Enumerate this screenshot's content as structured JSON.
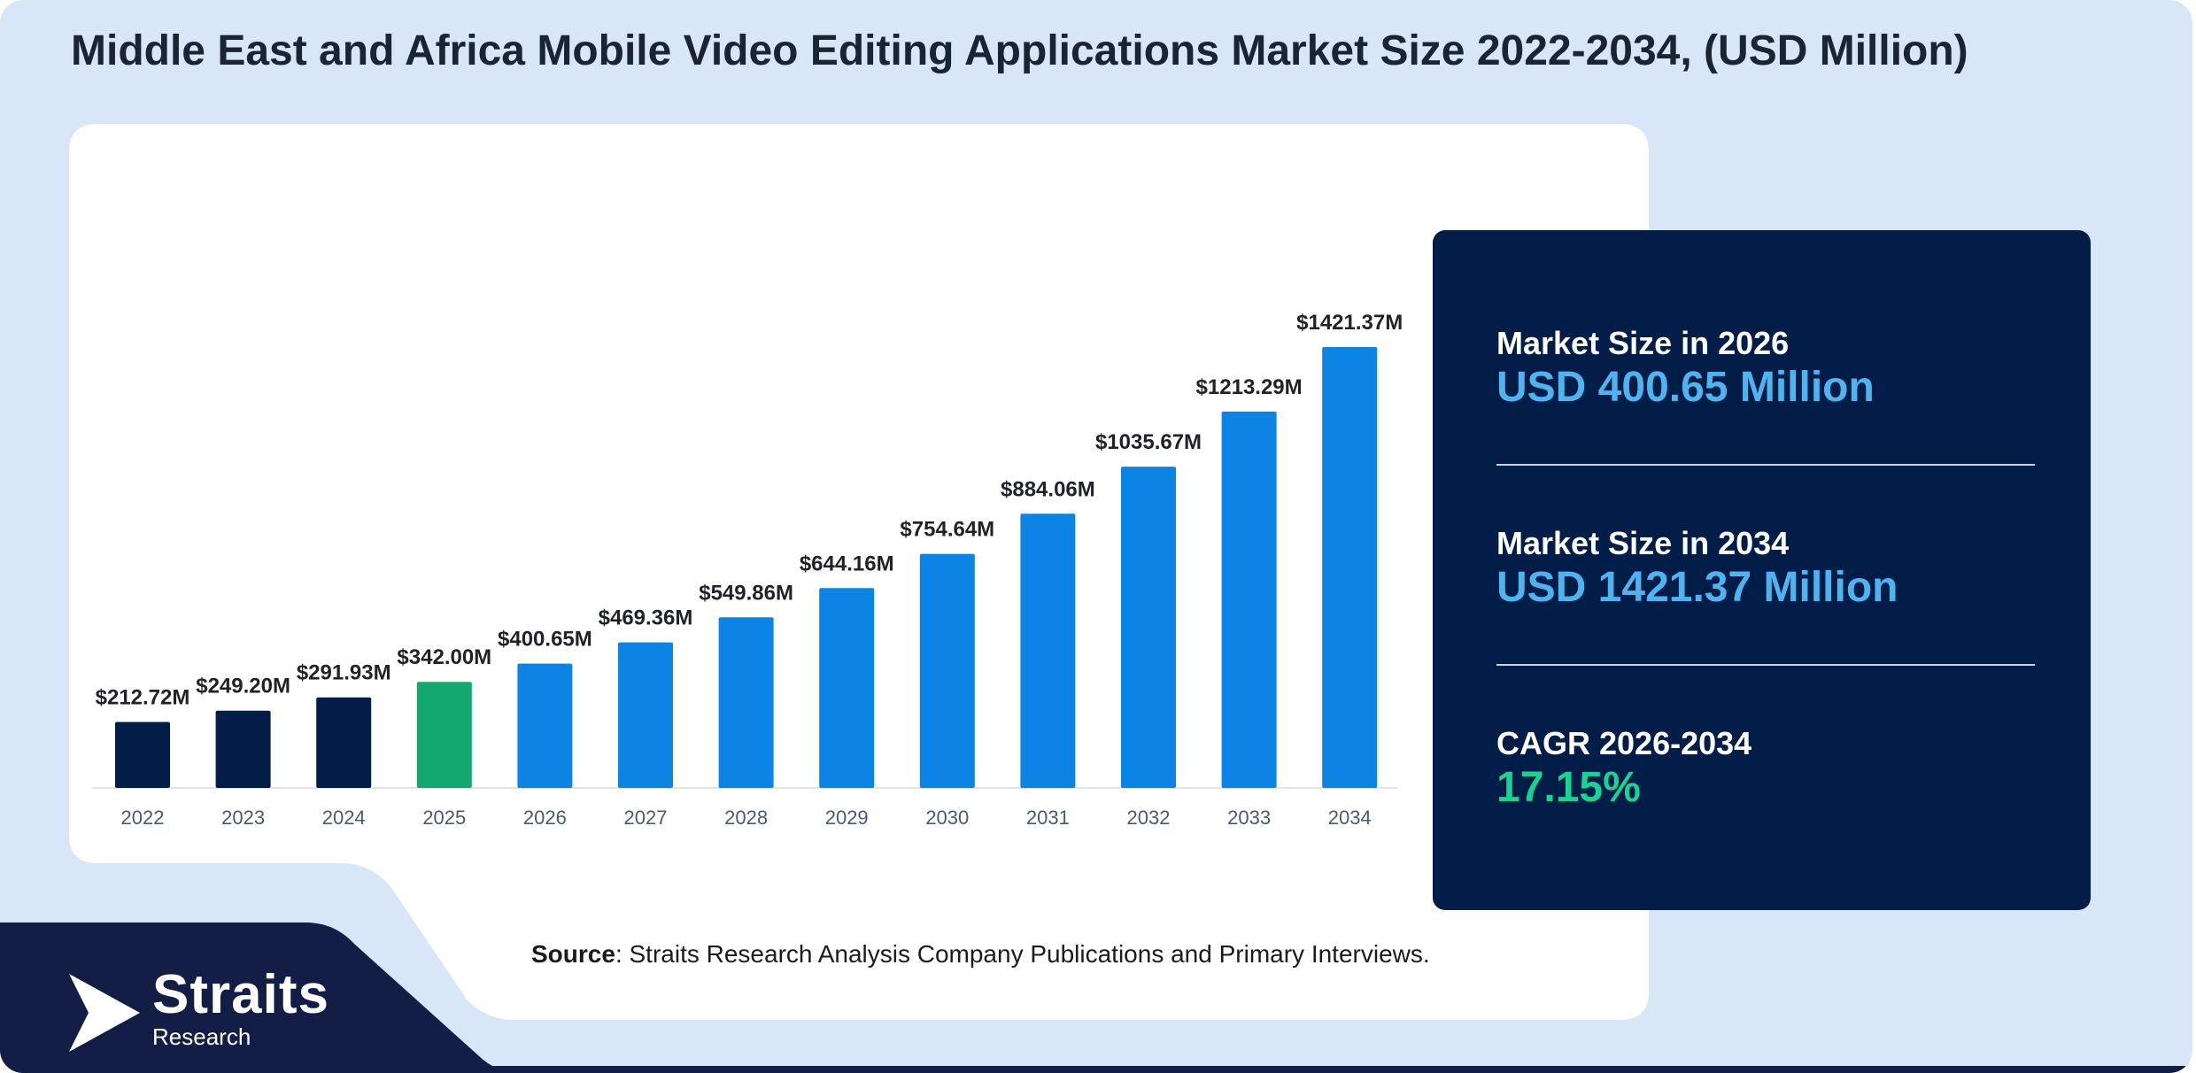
{
  "title": "Middle East and Africa Mobile Video Editing Applications Market Size 2022-2034, (USD Million)",
  "colors": {
    "historical": "#021d47",
    "base_year": "#13a86f",
    "forecast": "#0b84e6",
    "panel_bg": "#021d47",
    "value_blue": "#4fb3ef",
    "value_green": "#19d395"
  },
  "chart_data": {
    "type": "bar",
    "categories": [
      "2022",
      "2023",
      "2024",
      "2025",
      "2026",
      "2027",
      "2028",
      "2029",
      "2030",
      "2031",
      "2032",
      "2033",
      "2034"
    ],
    "values": [
      212.72,
      249.2,
      291.93,
      342.0,
      400.65,
      469.36,
      549.86,
      644.16,
      754.64,
      884.06,
      1035.67,
      1213.29,
      1421.37
    ],
    "data_labels": [
      "$212.72M",
      "$249.20M",
      "$291.93M",
      "$342.00M",
      "$400.65M",
      "$469.36M",
      "$549.86M",
      "$644.16M",
      "$754.64M",
      "$884.06M",
      "$1035.67M",
      "$1213.29M",
      "$1421.37M"
    ],
    "bar_colors": [
      "#021d47",
      "#021d47",
      "#021d47",
      "#13a86f",
      "#0b84e6",
      "#0b84e6",
      "#0b84e6",
      "#0b84e6",
      "#0b84e6",
      "#0b84e6",
      "#0b84e6",
      "#0b84e6",
      "#0b84e6"
    ],
    "ylim": [
      0,
      1421.37
    ],
    "grid": false,
    "legend": "none"
  },
  "panel": {
    "stat1": {
      "label": "Market Size in 2026",
      "value": "USD 400.65 Million"
    },
    "stat2": {
      "label": "Market Size in 2034",
      "value": "USD 1421.37 Million"
    },
    "stat3": {
      "label": "CAGR 2026-2034",
      "value": "17.15%"
    }
  },
  "source": {
    "label": "Source",
    "text": ": Straits Research Analysis Company Publications and Primary Interviews."
  },
  "logo": {
    "name": "Straits",
    "sub": "Research",
    "icon": "straits-logo-icon"
  }
}
